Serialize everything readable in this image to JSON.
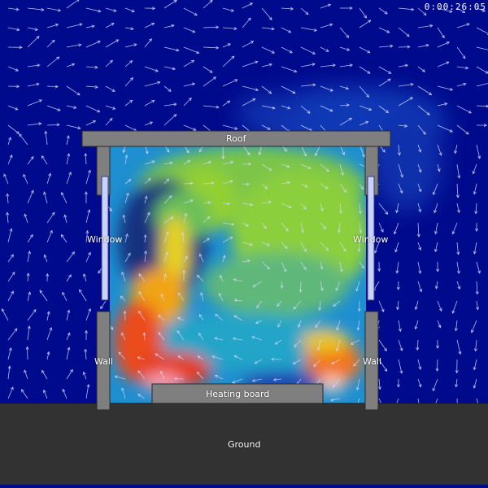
{
  "clock": "0:00:26:05",
  "labels": {
    "roof": "Roof",
    "window_left": "Window",
    "window_right": "Window",
    "wall_left": "Wall",
    "wall_right": "Wall",
    "heater": "Heating board",
    "ground": "Ground"
  },
  "colors": {
    "background": "#000a8c",
    "ground": "#323232",
    "structure": "#7f7f7f",
    "structure_edge": "#2a2a2a",
    "window_glass": "#c8d2ff",
    "arrow": "#d7dbff"
  }
}
